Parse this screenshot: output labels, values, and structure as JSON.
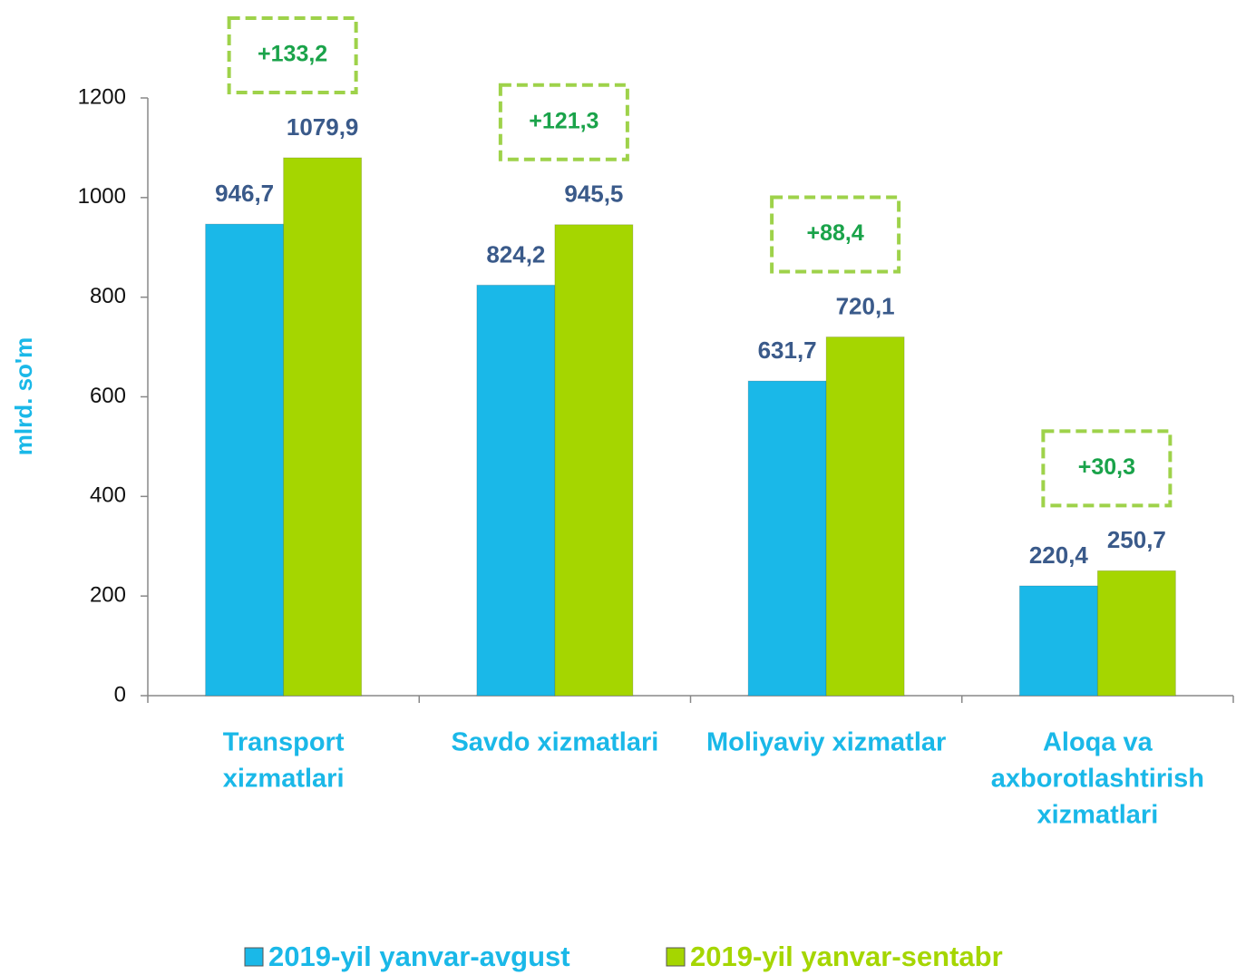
{
  "chart_data": {
    "type": "bar",
    "y_label": "mlrd. so'm",
    "categories": [
      [
        "Transport",
        "xizmatlari"
      ],
      [
        "Savdo xizmatlari"
      ],
      [
        "Moliyaviy xizmatlar"
      ],
      [
        "Aloqa va",
        "axborotlashtirish",
        "xizmatlari"
      ]
    ],
    "series": [
      {
        "name": "2019-yil yanvar-avgust",
        "color": "#1ab8e8",
        "values": [
          946.7,
          824.2,
          631.7,
          220.4
        ],
        "value_labels": [
          "946,7",
          "824,2",
          "631,7",
          "220,4"
        ]
      },
      {
        "name": "2019-yil yanvar-sentabr",
        "color": "#a5d600",
        "values": [
          1079.9,
          945.5,
          720.1,
          250.7
        ],
        "value_labels": [
          "1079,9",
          "945,5",
          "720,1",
          "250,7"
        ]
      }
    ],
    "annotations": [
      "+133,2",
      "+121,3",
      "+88,4",
      "+30,3"
    ],
    "ylim": [
      0,
      1200
    ],
    "yticks": [
      0,
      200,
      400,
      600,
      800,
      1000,
      1200
    ],
    "legend": "bottom"
  }
}
